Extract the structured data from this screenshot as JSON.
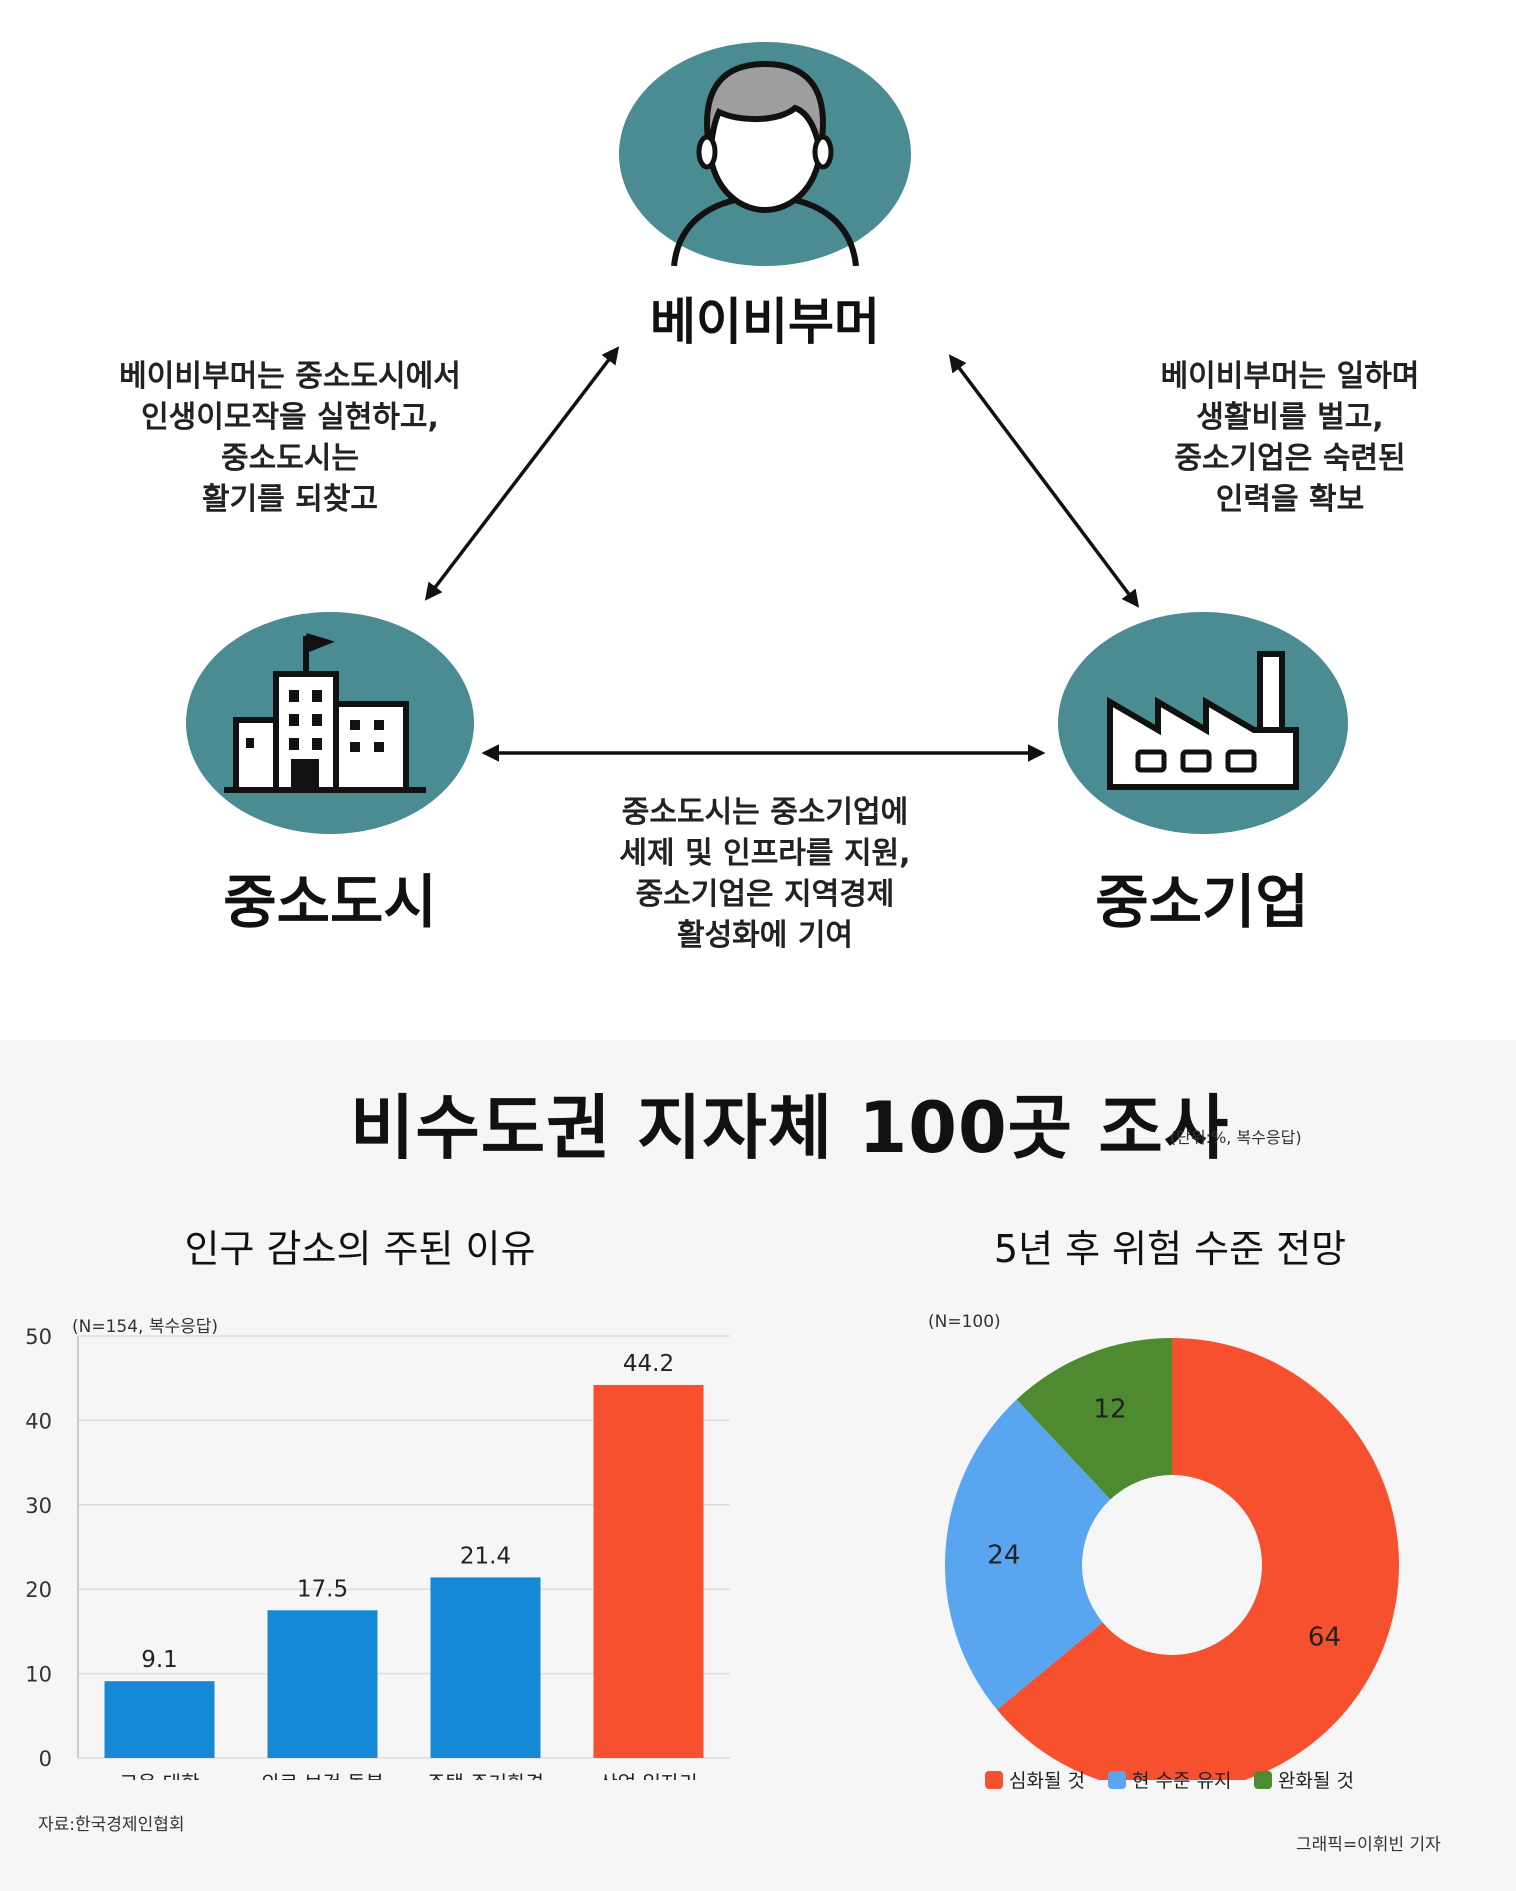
{
  "diagram": {
    "nodes": {
      "babyboomer": "베이비부머",
      "small_city": "중소도시",
      "small_business": "중소기업"
    },
    "relations": {
      "babyboomer_small_city": [
        "베이비부머는 중소도시에서",
        "인생이모작을 실현하고,",
        "중소도시는",
        "활기를 되찾고"
      ],
      "babyboomer_small_business": [
        "베이비부머는 일하며",
        "생활비를 벌고,",
        "중소기업은 숙련된",
        "인력을 확보"
      ],
      "small_city_small_business": [
        "중소도시는 중소기업에",
        "세제 및 인프라를 지원,",
        "중소기업은 지역경제",
        "활성화에 기여"
      ]
    },
    "colors": {
      "node_fill": "#4a8c92",
      "icon_stroke": "#111111",
      "arrow": "#111111"
    }
  },
  "survey": {
    "title": "비수도권 지자체 100곳 조사",
    "unit": "(단위:%, 복수응답)",
    "source": "자료:한국경제인협회",
    "credit": "그래픽=이휘빈 기자"
  },
  "chart_data": [
    {
      "type": "bar",
      "title": "인구 감소의 주된 이유",
      "note": "(N=154, 복수응답)",
      "categories": [
        "교육·대학",
        "의료·보건·돌봄",
        "주택·주거환경",
        "산업·일자리"
      ],
      "values": [
        9.1,
        17.5,
        21.4,
        44.2
      ],
      "value_labels": [
        "9.1",
        "17.5",
        "21.4",
        "44.2"
      ],
      "colors": [
        "#1588d6",
        "#1588d6",
        "#1588d6",
        "#f6502e"
      ],
      "ylim": [
        0,
        50
      ],
      "yticks": [
        "0",
        "10",
        "20",
        "30",
        "40",
        "50"
      ],
      "grid": true
    },
    {
      "type": "pie",
      "title": "5년 후 위험 수준 전망",
      "note": "(N=100)",
      "labels": [
        "심화될 것",
        "현 수준 유지",
        "완화될 것"
      ],
      "values": [
        64,
        24,
        12
      ],
      "value_labels": [
        "64",
        "24",
        "12"
      ],
      "colors": [
        "#f6502e",
        "#5aa5f0",
        "#4d8a30"
      ],
      "donut": true,
      "legend": "bottom"
    }
  ]
}
